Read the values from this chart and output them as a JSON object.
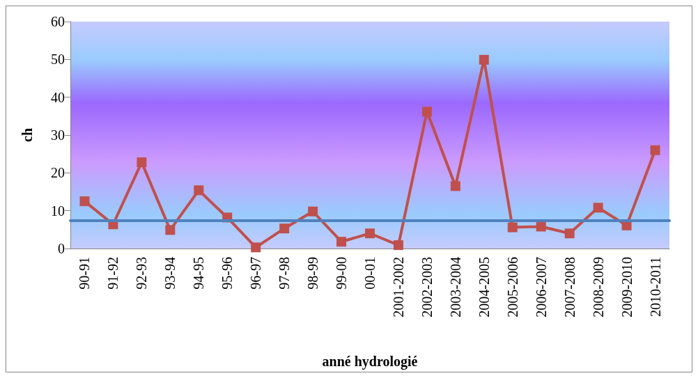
{
  "chart_data": {
    "type": "line",
    "xlabel": "anné hydrologié",
    "ylabel": "ch",
    "categories": [
      "90-91",
      "91-92",
      "92-93",
      "93-94",
      "94-95",
      "95-96",
      "96-97",
      "97-98",
      "98-99",
      "99-00",
      "00-01",
      "2001-2002",
      "2002-2003",
      "2003-2004",
      "2004-2005",
      "2005-2006",
      "2006-2007",
      "2007-2008",
      "2008-2009",
      "2009-2010",
      "2010-2011"
    ],
    "series": [
      {
        "color": "#c0504d",
        "values": [
          12.5,
          6.4,
          22.8,
          4.9,
          15.4,
          8.2,
          0.3,
          5.3,
          9.8,
          1.8,
          4.0,
          0.9,
          36.2,
          16.5,
          49.9,
          5.6,
          5.8,
          4.0,
          10.8,
          6.1,
          26.0
        ]
      }
    ],
    "ref_lines": [
      {
        "axis": "y",
        "value": 7.5,
        "color": "#4f81bd",
        "line_style": "solid"
      }
    ],
    "ylim": [
      0,
      60
    ],
    "yticks": [
      0,
      10,
      20,
      30,
      40,
      50,
      60
    ],
    "grid": false,
    "marker": "square",
    "line_style": "solid"
  }
}
